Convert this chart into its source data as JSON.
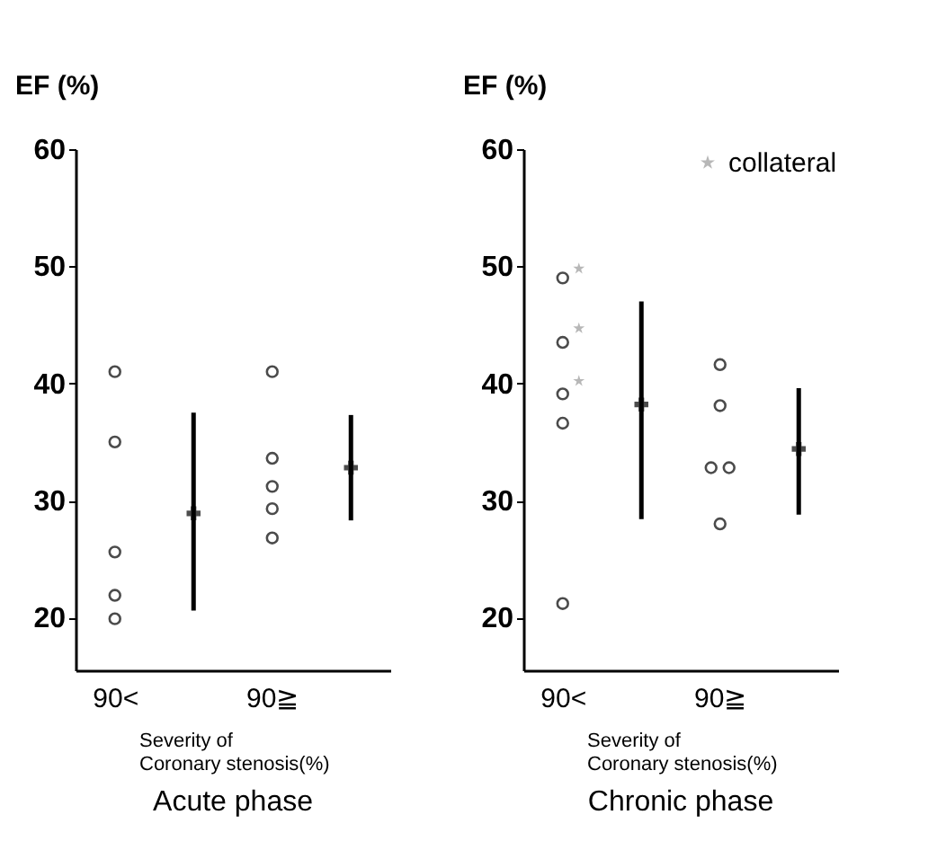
{
  "chart_data": [
    {
      "type": "scatter",
      "title": "Acute phase",
      "xlabel": "Severity of\nCoronary stenosis(%)",
      "ylabel": "EF (%)",
      "categories": [
        "90<",
        null,
        "90≧",
        null
      ],
      "ylim": [
        15.5,
        60
      ],
      "yticks": [
        20,
        30,
        40,
        50,
        60
      ],
      "grid": false,
      "series": [
        {
          "color": "#000000",
          "marker": "circle",
          "x": [
            "90<",
            "90<",
            "90<",
            "90<",
            "90<",
            "90≧",
            "90≧",
            "90≧",
            "90≧",
            "90≧"
          ],
          "values": [
            41.0,
            35.0,
            25.6,
            21.9,
            19.9,
            41.0,
            33.6,
            31.2,
            29.3,
            26.8
          ]
        },
        {
          "color": "#000000",
          "marker": "cross",
          "values": [
            null,
            28.9,
            null,
            32.8
          ],
          "errors": [
            null,
            [
              20.6,
              37.5
            ],
            null,
            [
              28.3,
              37.3
            ]
          ]
        }
      ]
    },
    {
      "type": "scatter",
      "title": "Chronic phase",
      "xlabel": "Severity of\nCoronary stenosis(%)",
      "ylabel": "EF (%)",
      "categories": [
        "90<",
        null,
        "90≧",
        null
      ],
      "ylim": [
        15.5,
        60
      ],
      "yticks": [
        20,
        30,
        40,
        50,
        60
      ],
      "grid": false,
      "legend": "top right",
      "series": [
        {
          "color": "#000000",
          "marker": "circle",
          "x": [
            "90<",
            "90<",
            "90<",
            "90<",
            "90<",
            "90≧",
            "90≧",
            "90≧",
            "90≧",
            "90≧"
          ],
          "values": [
            49.0,
            43.5,
            39.1,
            36.6,
            21.2,
            41.6,
            38.1,
            32.8,
            32.8,
            28.0
          ]
        },
        {
          "name": "collateral",
          "color": "#999999",
          "marker": "star",
          "x": [
            "90<",
            "90<",
            "90<"
          ],
          "values": [
            49.8,
            44.7,
            40.2
          ]
        },
        {
          "color": "#000000",
          "marker": "cross",
          "values": [
            null,
            38.2,
            null,
            34.4
          ],
          "errors": [
            null,
            [
              28.4,
              47.0
            ],
            null,
            [
              28.8,
              39.6
            ]
          ]
        }
      ]
    }
  ]
}
